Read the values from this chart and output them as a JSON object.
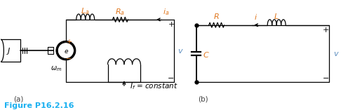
{
  "fig_width": 4.96,
  "fig_height": 1.57,
  "dpi": 100,
  "bg_color": "#ffffff",
  "caption": "Figure P16.2.16",
  "caption_color": "#1ab0f0",
  "caption_fontsize": 8.0,
  "label_a": "(a)",
  "label_b": "(b)",
  "label_color": "#444444",
  "label_fontsize": 7.5,
  "orange_color": "#e07820",
  "blue_color": "#6090c0"
}
